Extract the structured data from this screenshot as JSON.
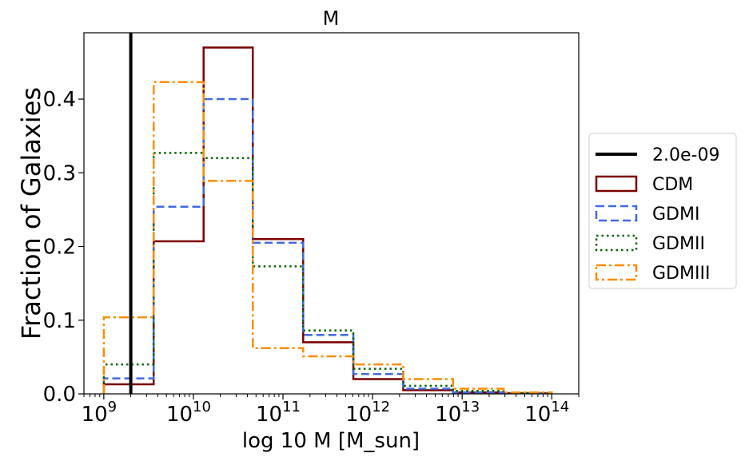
{
  "chart_data": {
    "type": "histogram",
    "title": "M",
    "xlabel": "log 10 M [M_sun]",
    "ylabel": "Fraction of Galaxies",
    "x_scale": "log",
    "xlim": [
      600000000.0,
      200000000000000.0
    ],
    "ylim": [
      0.0,
      0.49
    ],
    "x_tick_labels": [
      {
        "base": "10",
        "exp": "9",
        "value": 1000000000.0
      },
      {
        "base": "10",
        "exp": "10",
        "value": 10000000000.0
      },
      {
        "base": "10",
        "exp": "11",
        "value": 100000000000.0
      },
      {
        "base": "10",
        "exp": "12",
        "value": 1000000000000.0
      },
      {
        "base": "10",
        "exp": "13",
        "value": 10000000000000.0
      },
      {
        "base": "10",
        "exp": "14",
        "value": 100000000000000.0
      }
    ],
    "y_ticks": [
      "0.0",
      "0.1",
      "0.2",
      "0.3",
      "0.4"
    ],
    "y_tick_values": [
      0.0,
      0.1,
      0.2,
      0.3,
      0.4
    ],
    "bin_edges": [
      1000000000.0,
      3600000000.0,
      13000000000.0,
      46000000000.0,
      168000000000.0,
      610000000000.0,
      2200000000000.0,
      7900000000000.0,
      29000000000000.0,
      100000000000000.0
    ],
    "vline": {
      "name": "2.0e-09",
      "x": 2000000000.0,
      "color": "#000000"
    },
    "series": [
      {
        "name": "CDM",
        "color": "#7a0000",
        "style": "solid",
        "values": [
          0.013,
          0.207,
          0.47,
          0.21,
          0.07,
          0.02,
          0.005,
          0.002,
          0.001
        ]
      },
      {
        "name": "GDMI",
        "color": "#4169e1",
        "style": "dashed",
        "values": [
          0.021,
          0.254,
          0.4,
          0.205,
          0.08,
          0.027,
          0.007,
          0.002,
          0.001
        ]
      },
      {
        "name": "GDMII",
        "color": "#006400",
        "style": "dotted",
        "values": [
          0.04,
          0.327,
          0.32,
          0.173,
          0.086,
          0.034,
          0.011,
          0.004,
          0.001
        ]
      },
      {
        "name": "GDMIII",
        "color": "#ff8c00",
        "style": "dashdot",
        "values": [
          0.104,
          0.423,
          0.289,
          0.062,
          0.051,
          0.04,
          0.02,
          0.007,
          0.002
        ]
      }
    ],
    "legend_position": "center-right",
    "grid": false
  }
}
